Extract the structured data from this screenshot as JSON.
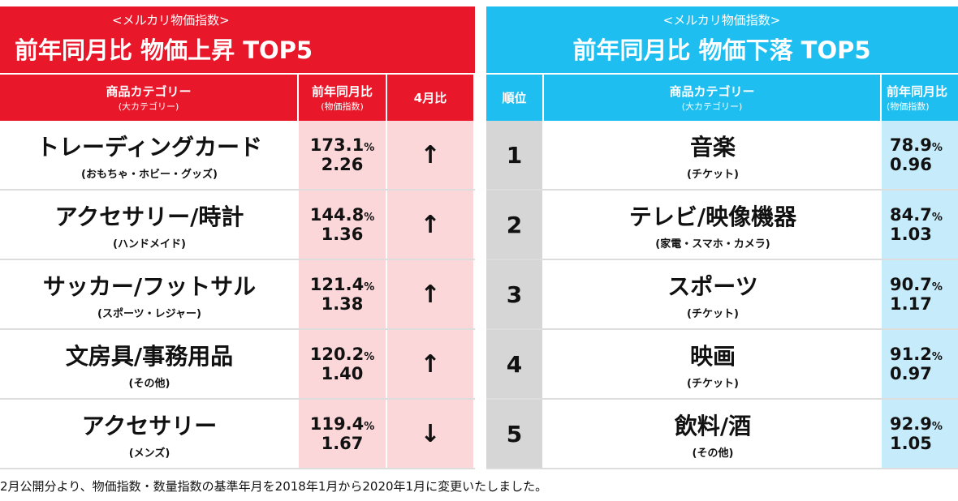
{
  "rise": {
    "subtitle": "<メルカリ物価指数>",
    "title": "前年同月比 物価上昇 TOP5",
    "headers": {
      "category": "商品カテゴリー",
      "category_sub": "(大カテゴリー)",
      "yoy": "前年同月比",
      "yoy_sub": "(物価指数)",
      "april": "4月比"
    },
    "rows": [
      {
        "name": "トレーディングカード",
        "group": "(おもちゃ・ホビー・グッズ)",
        "pct": "173.1",
        "index": "2.26",
        "april": "↑"
      },
      {
        "name": "アクセサリー/時計",
        "group": "(ハンドメイド)",
        "pct": "144.8",
        "index": "1.36",
        "april": "↑"
      },
      {
        "name": "サッカー/フットサル",
        "group": "(スポーツ・レジャー)",
        "pct": "121.4",
        "index": "1.38",
        "april": "↑"
      },
      {
        "name": "文房具/事務用品",
        "group": "(その他)",
        "pct": "120.2",
        "index": "1.40",
        "april": "↑"
      },
      {
        "name": "アクセサリー",
        "group": "(メンズ)",
        "pct": "119.4",
        "index": "1.67",
        "april": "↓"
      }
    ]
  },
  "fall": {
    "subtitle": "<メルカリ物価指数>",
    "title": "前年同月比 物価下落 TOP5",
    "headers": {
      "rank": "順位",
      "category": "商品カテゴリー",
      "category_sub": "(大カテゴリー)",
      "yoy": "前年同月比",
      "yoy_sub": "(物価指数)"
    },
    "rows": [
      {
        "rank": "1",
        "name": "音楽",
        "group": "(チケット)",
        "pct": "78.9",
        "index": "0.96"
      },
      {
        "rank": "2",
        "name": "テレビ/映像機器",
        "group": "(家電・スマホ・カメラ)",
        "pct": "84.7",
        "index": "1.03"
      },
      {
        "rank": "3",
        "name": "スポーツ",
        "group": "(チケット)",
        "pct": "90.7",
        "index": "1.17"
      },
      {
        "rank": "4",
        "name": "映画",
        "group": "(チケット)",
        "pct": "91.2",
        "index": "0.97"
      },
      {
        "rank": "5",
        "name": "飲料/酒",
        "group": "(その他)",
        "pct": "92.9",
        "index": "1.05"
      }
    ]
  },
  "percent_unit": "%",
  "footer": "2月公開分より、物価指数・数量指数の基準年月を2018年1月から2020年1月に変更いたしました。",
  "colors": {
    "red": "#e8172a",
    "pink": "#fbd7da",
    "blue": "#1ebff0",
    "light_blue": "#c6ebfa",
    "rank_gray": "#d6d6d6"
  }
}
